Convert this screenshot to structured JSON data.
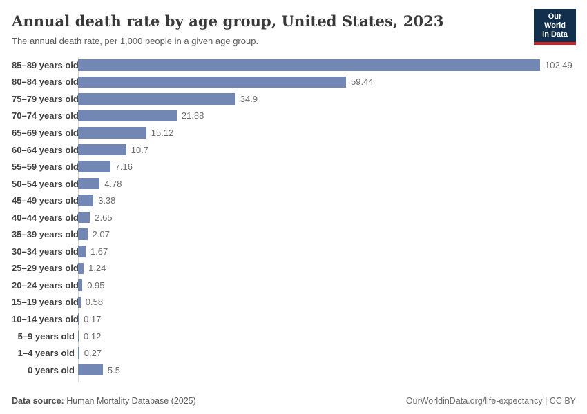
{
  "header": {
    "title": "Annual death rate by age group, United States, 2023",
    "subtitle": "The annual death rate, per 1,000 people in a given age group.",
    "logo": {
      "line1": "Our World",
      "line2": "in Data",
      "bg_color": "#12304e",
      "accent_color": "#cb2428"
    }
  },
  "chart_data": {
    "type": "bar",
    "orientation": "horizontal",
    "title": "Annual death rate by age group, United States, 2023",
    "xlabel": "",
    "ylabel": "",
    "xlim": [
      0,
      102.49
    ],
    "grid": false,
    "legend": false,
    "bar_color": "#7287b4",
    "categories": [
      "85–89 years old",
      "80–84 years old",
      "75–79 years old",
      "70–74 years old",
      "65–69 years old",
      "60–64 years old",
      "55–59 years old",
      "50–54 years old",
      "45–49 years old",
      "40–44 years old",
      "35–39 years old",
      "30–34 years old",
      "25–29 years old",
      "20–24 years old",
      "15–19 years old",
      "10–14 years old",
      "5–9 years old",
      "1–4 years old",
      "0 years old"
    ],
    "values": [
      102.49,
      59.44,
      34.9,
      21.88,
      15.12,
      10.7,
      7.16,
      4.78,
      3.38,
      2.65,
      2.07,
      1.67,
      1.24,
      0.95,
      0.58,
      0.17,
      0.12,
      0.27,
      5.5
    ],
    "value_labels": [
      "102.49",
      "59.44",
      "34.9",
      "21.88",
      "15.12",
      "10.7",
      "7.16",
      "4.78",
      "3.38",
      "2.65",
      "2.07",
      "1.67",
      "1.24",
      "0.95",
      "0.58",
      "0.17",
      "0.12",
      "0.27",
      "5.5"
    ]
  },
  "footer": {
    "source_label": "Data source:",
    "source_value": " Human Mortality Database (2025)",
    "link": "OurWorldinData.org/life-expectancy",
    "separator": " | ",
    "license": "CC BY"
  }
}
